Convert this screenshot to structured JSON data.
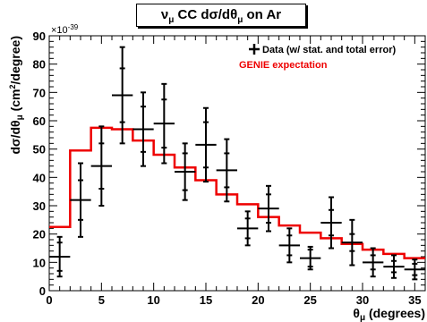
{
  "chart_data": {
    "type": "line",
    "title_parts": [
      "ν",
      "μ",
      " CC dσ/dθ",
      "μ",
      " on Ar"
    ],
    "xlabel_parts": [
      "θ",
      "μ",
      " (degrees)"
    ],
    "ylabel_parts": [
      "dσ/dθ",
      "μ",
      " (cm",
      "2",
      "/degree)"
    ],
    "y_exponent_label": "×10",
    "y_exponent_power": "-39",
    "xlim": [
      0,
      36
    ],
    "ylim": [
      0,
      90
    ],
    "x_ticks": [
      0,
      5,
      10,
      15,
      20,
      25,
      30,
      35
    ],
    "y_ticks": [
      0,
      10,
      20,
      30,
      40,
      50,
      60,
      70,
      80,
      90
    ],
    "grid": false,
    "legend_position": "top-right",
    "legend": {
      "data_label": "Data (w/ stat. and total error)",
      "model_label": "GENIE expectation"
    },
    "colors": {
      "data": "#000000",
      "model": "#ee0000"
    },
    "data": {
      "x": [
        1,
        3,
        5,
        7,
        9,
        11,
        13,
        15,
        17,
        19,
        21,
        23,
        25,
        27,
        29,
        31,
        33,
        35
      ],
      "x_halfwidth": 1,
      "y": [
        12,
        32,
        44,
        69,
        57,
        59,
        42,
        51.5,
        42.5,
        22,
        29,
        16,
        11.5,
        24,
        17,
        10,
        8.5,
        7.5
      ],
      "stat_err": [
        5,
        7,
        8,
        9.5,
        8,
        8.5,
        6.5,
        8,
        6,
        3.5,
        5,
        3.5,
        3,
        4.5,
        3,
        2.5,
        2,
        2
      ],
      "total_err": [
        7,
        13,
        14,
        17,
        13,
        14,
        10,
        13,
        11,
        6,
        8,
        6,
        4,
        9,
        8,
        5,
        4,
        3.5
      ]
    },
    "model": {
      "bin_edges": [
        0,
        2,
        4,
        6,
        8,
        10,
        12,
        14,
        16,
        18,
        20,
        22,
        24,
        26,
        28,
        30,
        32,
        34,
        36
      ],
      "values": [
        22.5,
        49.5,
        57.5,
        57,
        53,
        48,
        43.5,
        39,
        34,
        30.5,
        26,
        23,
        20.5,
        18.5,
        16.5,
        14.5,
        13,
        11.5
      ]
    }
  }
}
